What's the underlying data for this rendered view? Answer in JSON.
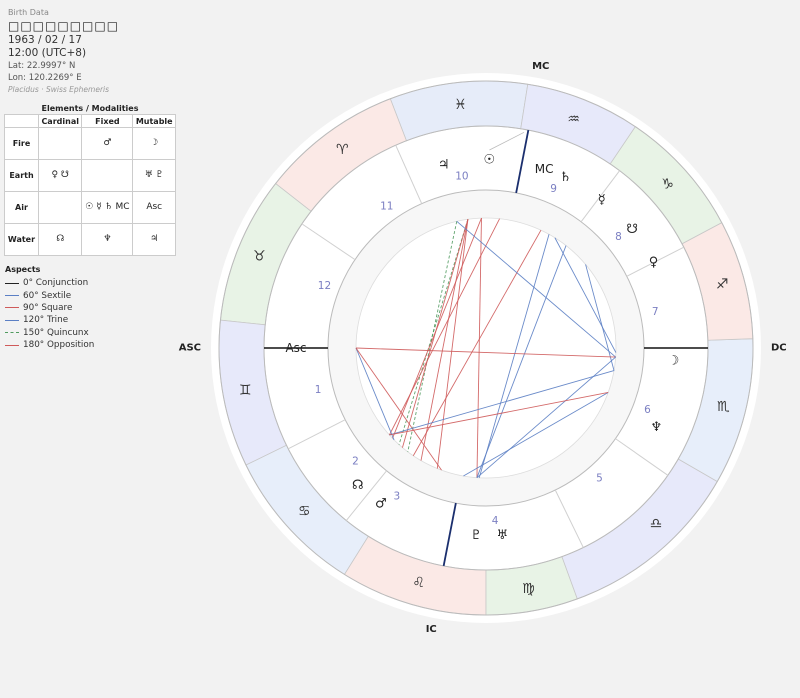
{
  "birth": {
    "section_label": "Birth Data",
    "name": "□□□□□□□□□",
    "date": "1963 / 02 / 17",
    "time": "12:00 (UTC+8)",
    "lat": "Lat: 22.9997° N",
    "lon": "Lon: 120.2269° E",
    "system": "Placidus · Swiss Ephemeris"
  },
  "elements": {
    "title": "Elements / Modalities",
    "columns": [
      "Cardinal",
      "Fixed",
      "Mutable"
    ],
    "rows": [
      {
        "label": "Fire",
        "cells": [
          "",
          "♂",
          "☽"
        ]
      },
      {
        "label": "Earth",
        "cells": [
          "♀ ☋",
          "",
          "♅ ♇"
        ]
      },
      {
        "label": "Air",
        "cells": [
          "",
          "☉ ☿ ♄ MC",
          "Asc"
        ]
      },
      {
        "label": "Water",
        "cells": [
          "☊",
          "♆",
          "♃"
        ]
      }
    ]
  },
  "aspects": {
    "title": "Aspects",
    "items": [
      {
        "label": "0° Conjunction",
        "color": "#222222",
        "dashed": false
      },
      {
        "label": "60° Sextile",
        "color": "#5b7fc4",
        "dashed": false
      },
      {
        "label": "90° Square",
        "color": "#cf5a5a",
        "dashed": false
      },
      {
        "label": "120° Trine",
        "color": "#5b7fc4",
        "dashed": false
      },
      {
        "label": "150° Quincunx",
        "color": "#4f9a5e",
        "dashed": true
      },
      {
        "label": "180° Opposition",
        "color": "#cf5a5a",
        "dashed": false
      }
    ]
  },
  "chart_data": {
    "type": "natal-wheel",
    "asc_deg": 180,
    "mc_deg": 79,
    "angles": [
      {
        "label": "ASC",
        "deg": 180
      },
      {
        "label": "DC",
        "deg": 0
      },
      {
        "label": "MC",
        "deg": 79
      },
      {
        "label": "IC",
        "deg": 259
      }
    ],
    "signs": [
      {
        "glyph": "♓",
        "mid": 96,
        "color": "#e6ecf9"
      },
      {
        "glyph": "♈",
        "mid": 126,
        "color": "#fbe9e6"
      },
      {
        "glyph": "♉",
        "mid": 158,
        "color": "#e8f3e6"
      },
      {
        "glyph": "♊",
        "mid": 190,
        "color": "#e7e9fa"
      },
      {
        "glyph": "♋",
        "mid": 222,
        "color": "#e7eefa"
      },
      {
        "glyph": "♌",
        "mid": 254,
        "color": "#fbe9e6"
      },
      {
        "glyph": "♍",
        "mid": 280,
        "color": "#e8f3e6"
      },
      {
        "glyph": "♎",
        "mid": 314,
        "color": "#e7e9fa"
      },
      {
        "glyph": "♏",
        "mid": 346,
        "color": "#e7eefa"
      },
      {
        "glyph": "♐",
        "mid": 15,
        "color": "#fbe9e6"
      },
      {
        "glyph": "♑",
        "mid": 42,
        "color": "#e8f3e6"
      },
      {
        "glyph": "♒",
        "mid": 69,
        "color": "#e7e9fa"
      }
    ],
    "sign_cusps": [
      81,
      111,
      142,
      174,
      206,
      238,
      270,
      290,
      330,
      362,
      28,
      56
    ],
    "houses": [
      {
        "num": "1",
        "deg": 194
      },
      {
        "num": "2",
        "deg": 221
      },
      {
        "num": "3",
        "deg": 239
      },
      {
        "num": "4",
        "deg": 273
      },
      {
        "num": "5",
        "deg": 311
      },
      {
        "num": "6",
        "deg": 339
      },
      {
        "num": "7",
        "deg": 12
      },
      {
        "num": "8",
        "deg": 40
      },
      {
        "num": "9",
        "deg": 67
      },
      {
        "num": "10",
        "deg": 98
      },
      {
        "num": "11",
        "deg": 125
      },
      {
        "num": "12",
        "deg": 159
      }
    ],
    "house_cusps": [
      180,
      207,
      231,
      259,
      296,
      325,
      0,
      27,
      53,
      79,
      114,
      146
    ],
    "planets": [
      {
        "glyph": "☉",
        "deg": 89
      },
      {
        "glyph": "☿",
        "deg": 52
      },
      {
        "glyph": "♄",
        "deg": 65
      },
      {
        "glyph": "☋",
        "deg": 39
      },
      {
        "glyph": "♀",
        "deg": 27
      },
      {
        "glyph": "☽",
        "deg": 356
      },
      {
        "glyph": "♆",
        "deg": 335
      },
      {
        "glyph": "♇",
        "deg": 267
      },
      {
        "glyph": "♅",
        "deg": 275
      },
      {
        "glyph": "♂",
        "deg": 236
      },
      {
        "glyph": "☊",
        "deg": 227
      },
      {
        "glyph": "♃",
        "deg": 103
      }
    ],
    "points": [
      {
        "label": "MC",
        "deg": 79
      },
      {
        "label": "Asc",
        "deg": 180
      }
    ],
    "aspect_lines": [
      {
        "from": 103,
        "to": 233,
        "kind": "quincunx"
      },
      {
        "from": 98,
        "to": 228,
        "kind": "quincunx"
      },
      {
        "from": 98,
        "to": 230,
        "kind": "square"
      },
      {
        "from": 98,
        "to": 240,
        "kind": "square"
      },
      {
        "from": 98,
        "to": 248,
        "kind": "square"
      },
      {
        "from": 92,
        "to": 224,
        "kind": "square"
      },
      {
        "from": 92,
        "to": 266,
        "kind": "square"
      },
      {
        "from": 84,
        "to": 222,
        "kind": "square"
      },
      {
        "from": 65,
        "to": 236,
        "kind": "square"
      },
      {
        "from": 61,
        "to": 267,
        "kind": "trine"
      },
      {
        "from": 52,
        "to": 266,
        "kind": "trine"
      },
      {
        "from": 58,
        "to": 358,
        "kind": "trine"
      },
      {
        "from": 40,
        "to": 350,
        "kind": "trine"
      },
      {
        "from": 103,
        "to": 356,
        "kind": "sextile"
      },
      {
        "from": 180,
        "to": 356,
        "kind": "square"
      },
      {
        "from": 180,
        "to": 225,
        "kind": "trine"
      },
      {
        "from": 180,
        "to": 250,
        "kind": "square"
      },
      {
        "from": 222,
        "to": 350,
        "kind": "trine"
      },
      {
        "from": 266,
        "to": 356,
        "kind": "trine"
      },
      {
        "from": 260,
        "to": 340,
        "kind": "sextile"
      },
      {
        "from": 222,
        "to": 340,
        "kind": "square"
      }
    ]
  }
}
